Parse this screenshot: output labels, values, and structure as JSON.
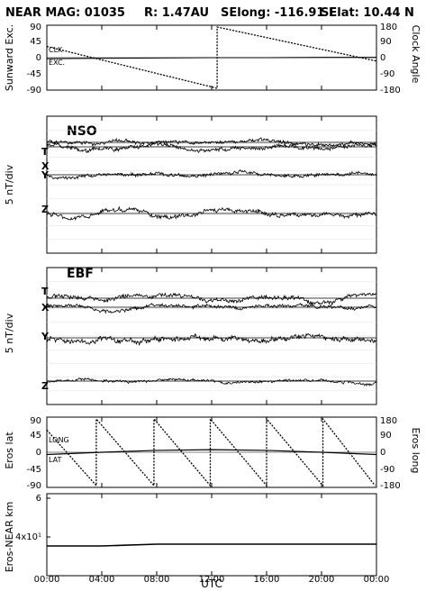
{
  "header": {
    "mission": "NEAR MAG: 01035",
    "distance": "R: 1.47AU",
    "selong": "SElong: -116.91 E",
    "selat": "SElat:   10.44 N"
  },
  "xlabel": "UTC",
  "x_ticks": [
    "00:00",
    "04:00",
    "08:00",
    "12:00",
    "16:00",
    "20:00",
    "00:00"
  ],
  "chart_data": [
    {
      "id": "panel-1",
      "type": "line",
      "ylabel_left": "Sunward Exc.",
      "ylabel_right": "Clock Angle",
      "y_ticks_left": [
        "90",
        "45",
        "0",
        "-45",
        "-90"
      ],
      "y_ticks_right": [
        "180",
        "90",
        "0",
        "-90",
        "-180"
      ],
      "ylim": [
        -90,
        90
      ],
      "series": [
        {
          "name": "CLK",
          "values_x": [
            0,
            12.4,
            12.4,
            24
          ],
          "values_y": [
            33,
            -90,
            90,
            -10
          ],
          "style": "dashed"
        },
        {
          "name": "EXC.",
          "values_x": [
            0,
            4,
            8,
            12,
            16,
            20,
            24
          ],
          "values_y": [
            -3,
            -2,
            -1,
            0,
            0,
            1,
            1
          ]
        }
      ]
    },
    {
      "id": "panel-2",
      "type": "line",
      "panel_title": "NSO",
      "ylabel_left": "5 nT/div",
      "series": [
        {
          "name": "T",
          "offset": 163,
          "amp": 5,
          "seed": 11
        },
        {
          "name": "X",
          "offset": 158,
          "amp": 4,
          "seed": 23
        },
        {
          "name": "Y",
          "offset": 194,
          "amp": 4,
          "seed": 37
        },
        {
          "name": "Z",
          "offset": 237,
          "amp": 5,
          "seed": 51
        }
      ]
    },
    {
      "id": "panel-3",
      "type": "line",
      "panel_title": "EBF",
      "ylabel_left": "5 nT/div",
      "series": [
        {
          "name": "T",
          "offset": 331,
          "amp": 5,
          "seed": 67
        },
        {
          "name": "X",
          "offset": 341,
          "amp": 4,
          "seed": 79
        },
        {
          "name": "Y",
          "offset": 375,
          "amp": 6,
          "seed": 89
        },
        {
          "name": "Z",
          "offset": 423,
          "amp": 3,
          "seed": 97
        }
      ]
    },
    {
      "id": "panel-4",
      "type": "line",
      "ylabel_left": "Eros lat",
      "ylabel_right": "Eros long",
      "y_ticks_left": [
        "90",
        "45",
        "0",
        "-45",
        "-90"
      ],
      "y_ticks_right": [
        "180",
        "90",
        "0",
        "-90",
        "-180"
      ],
      "ylim": [
        -90,
        90
      ],
      "series": [
        {
          "name": "LONG",
          "style": "dashed",
          "resets_x": [
            3.6,
            7.8,
            11.9,
            16.0,
            20.1,
            23.9
          ]
        },
        {
          "name": "LAT",
          "values_x": [
            0,
            4,
            8,
            12,
            16,
            20,
            24
          ],
          "values_y": [
            -6,
            0,
            5,
            7,
            5,
            0,
            -6
          ]
        }
      ]
    },
    {
      "id": "panel-5",
      "type": "line",
      "ylabel_left": "Eros-NEAR km",
      "y_ticks_left": [
        "6",
        "4x10¹"
      ],
      "series": [
        {
          "name": "range",
          "values_x": [
            0,
            4,
            8,
            12,
            16,
            20,
            24
          ],
          "values_y": [
            27,
            27,
            28,
            28,
            28,
            28,
            28
          ]
        }
      ]
    }
  ]
}
